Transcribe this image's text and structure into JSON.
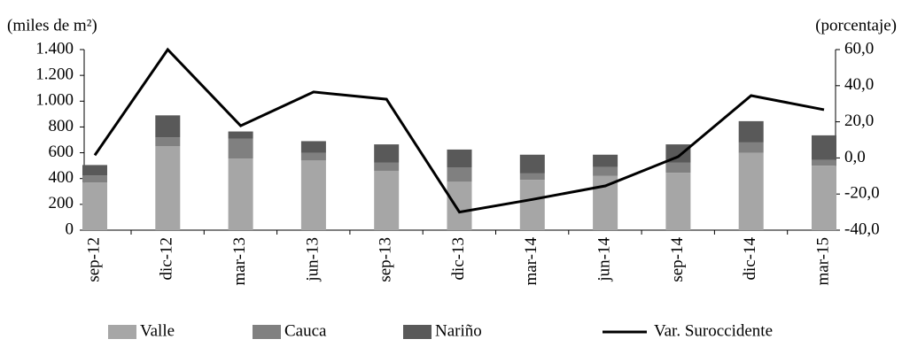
{
  "chart_data": {
    "type": "bar-line",
    "y_label": "(miles de m²)",
    "y2_label": "(porcentaje)",
    "categories": [
      "sep-12",
      "dic-12",
      "mar-13",
      "jun-13",
      "sep-13",
      "dic-13",
      "mar-14",
      "jun-14",
      "sep-14",
      "dic-14",
      "mar-15"
    ],
    "series": [
      {
        "name": "Valle",
        "color": "#a6a6a6",
        "values": [
          370,
          650,
          555,
          540,
          460,
          375,
          390,
          420,
          445,
          600,
          500
        ]
      },
      {
        "name": "Cauca",
        "color": "#808080",
        "values": [
          55,
          70,
          155,
          60,
          65,
          110,
          50,
          70,
          80,
          80,
          45
        ]
      },
      {
        "name": "Nariño",
        "color": "#595959",
        "values": [
          80,
          170,
          55,
          90,
          140,
          140,
          145,
          95,
          140,
          165,
          190
        ]
      },
      {
        "name": "Var. Suroccidente",
        "color": "#000000",
        "axis": "y2",
        "values": [
          1.5,
          60,
          17.8,
          36.5,
          32.5,
          -30,
          -23,
          -15.5,
          0.7,
          34.5,
          26.7
        ]
      }
    ],
    "ylim": [
      0,
      1400
    ],
    "yticks": [
      0,
      200,
      400,
      600,
      800,
      {
        "value": 1000,
        "label": "1.000"
      },
      {
        "value": 1200,
        "label": "1.200"
      },
      {
        "value": 1400,
        "label": "1.400"
      }
    ],
    "y2lim": [
      -40,
      60
    ],
    "y2ticks": [
      {
        "value": -40,
        "label": "-40,0"
      },
      {
        "value": -20,
        "label": "-20,0"
      },
      {
        "value": 0,
        "label": "0,0"
      },
      {
        "value": 20,
        "label": "20,0"
      },
      {
        "value": 40,
        "label": "40,0"
      },
      {
        "value": 60,
        "label": "60,0"
      }
    ],
    "grid": false
  }
}
